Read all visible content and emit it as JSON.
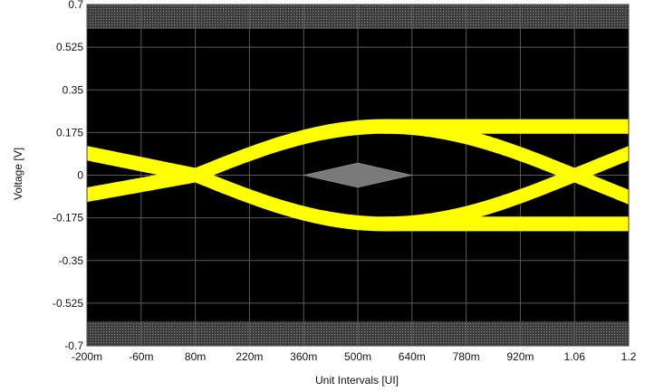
{
  "chart_data": {
    "type": "eye-diagram",
    "xlabel": "Unit Intervals [UI]",
    "ylabel": "Voltage [V]",
    "xlim": [
      -0.2,
      1.2
    ],
    "ylim": [
      -0.7,
      0.7
    ],
    "x_ticks": [
      -0.2,
      -0.06,
      0.08,
      0.22,
      0.36,
      0.5,
      0.64,
      0.78,
      0.92,
      1.06,
      1.2
    ],
    "x_tick_labels": [
      "-200m",
      "-60m",
      "80m",
      "220m",
      "360m",
      "500m",
      "640m",
      "780m",
      "920m",
      "1.06",
      "1.2"
    ],
    "y_ticks": [
      0.7,
      0.525,
      0.35,
      0.175,
      0,
      -0.175,
      -0.35,
      -0.525,
      -0.7
    ],
    "y_tick_labels": [
      "0.7",
      "0.525",
      "0.35",
      "0.175",
      "0",
      "-0.175",
      "-0.35",
      "-0.525",
      "-0.7"
    ],
    "grid": true,
    "colors": {
      "background": "#000000",
      "trace": "#ffff00",
      "grid": "#5a5a5a",
      "mask": "#7a7a7a",
      "mask_pattern": "#3a3a3a"
    },
    "eye": {
      "crossing_x": [
        0.08,
        1.06
      ],
      "crossing_y": 0.0,
      "high_level": 0.2,
      "low_level": -0.19,
      "band_half_width": 0.03,
      "start_high": 0.09,
      "start_low": -0.08
    },
    "masks": {
      "upper": [
        0.6,
        0.7
      ],
      "lower": [
        -0.7,
        -0.6
      ],
      "center_diamond": {
        "x": [
          0.36,
          0.5,
          0.64
        ],
        "y": [
          -0.05,
          0,
          0.05
        ]
      }
    }
  }
}
